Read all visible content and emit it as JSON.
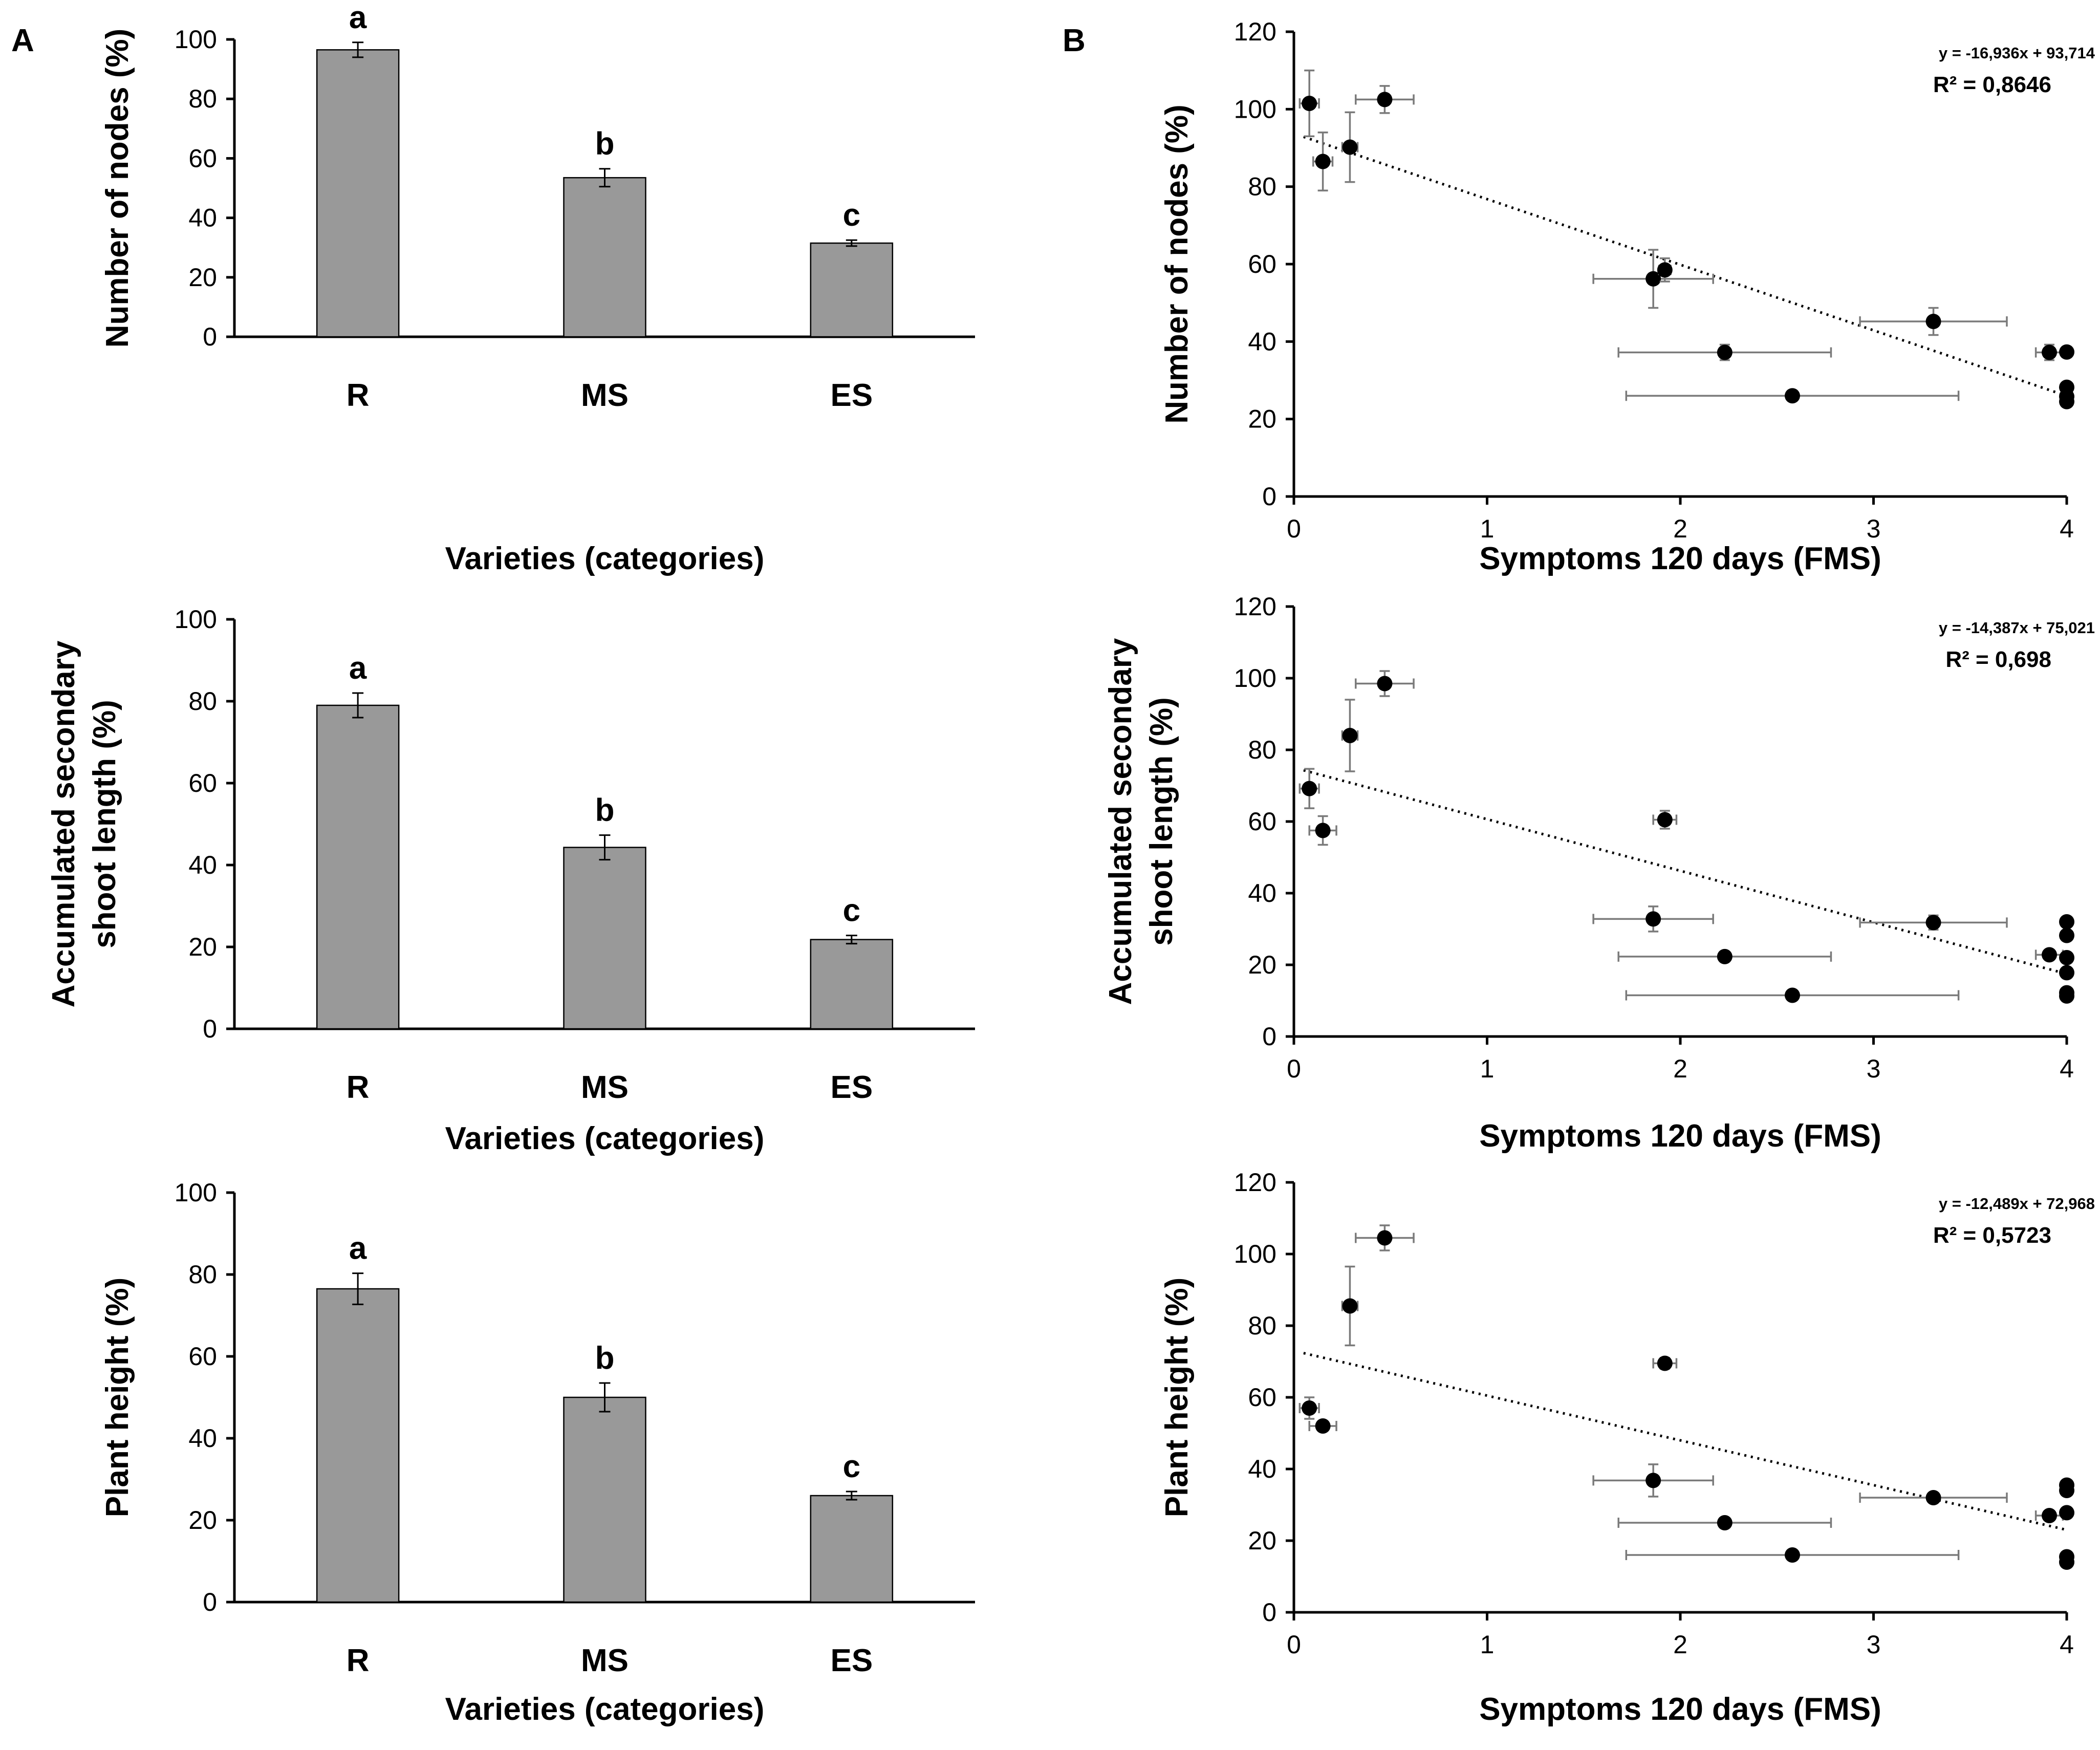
{
  "panels": {
    "A": "A",
    "B": "B"
  },
  "chart_data": [
    {
      "id": "bar-nodes",
      "type": "bar",
      "title": "",
      "categories": [
        "R",
        "MS",
        "ES"
      ],
      "values": [
        96.5,
        53.5,
        31.5
      ],
      "errors": [
        2.5,
        3,
        1
      ],
      "letters": [
        "a",
        "b",
        "c"
      ],
      "xlabel": "Varieties (categories)",
      "ylabel": [
        "Number of nodes (%)"
      ],
      "ylim": [
        0,
        100
      ],
      "yticks": [
        0,
        20,
        40,
        60,
        80,
        100
      ]
    },
    {
      "id": "bar-shoot",
      "type": "bar",
      "title": "",
      "categories": [
        "R",
        "MS",
        "ES"
      ],
      "values": [
        79,
        44.3,
        21.8
      ],
      "errors": [
        3,
        3,
        1
      ],
      "letters": [
        "a",
        "b",
        "c"
      ],
      "xlabel": "Varieties (categories)",
      "ylabel": [
        "Accumulated secondary",
        "shoot length (%)"
      ],
      "ylim": [
        0,
        100
      ],
      "yticks": [
        0,
        20,
        40,
        60,
        80,
        100
      ]
    },
    {
      "id": "bar-height",
      "type": "bar",
      "title": "",
      "categories": [
        "R",
        "MS",
        "ES"
      ],
      "values": [
        76.5,
        50,
        26
      ],
      "errors": [
        3.8,
        3.5,
        1
      ],
      "letters": [
        "a",
        "b",
        "c"
      ],
      "xlabel": "Varieties (categories)",
      "ylabel": [
        "Plant height (%)"
      ],
      "ylim": [
        0,
        100
      ],
      "yticks": [
        0,
        20,
        40,
        60,
        80,
        100
      ]
    },
    {
      "id": "scatter-nodes",
      "type": "scatter",
      "xlabel": "Symptoms 120 days (FMS)",
      "ylabel": [
        "Number of nodes (%)"
      ],
      "xlim": [
        0,
        4
      ],
      "ylim": [
        0,
        120
      ],
      "xticks": [
        0,
        1,
        2,
        3,
        4
      ],
      "yticks": [
        0,
        20,
        40,
        60,
        80,
        100,
        120
      ],
      "equation": "y = -16,936x + 93,714",
      "r2": "R² = 0,8646",
      "trend": {
        "slope": -16.936,
        "intercept": 93.714,
        "x_from": 0.05,
        "x_to": 4
      },
      "points": [
        {
          "x": 0.08,
          "y": 101.5,
          "xerr": 0.05,
          "yerr": 8.5
        },
        {
          "x": 0.47,
          "y": 102.5,
          "xerr": 0.15,
          "yerr": 3.5
        },
        {
          "x": 0.15,
          "y": 86.5,
          "xerr": 0.05,
          "yerr": 7.5
        },
        {
          "x": 0.29,
          "y": 90.2,
          "xerr": 0.04,
          "yerr": 9
        },
        {
          "x": 1.86,
          "y": 56.2,
          "xerr": 0.31,
          "yerr": 7.5
        },
        {
          "x": 1.92,
          "y": 58.5,
          "xerr": 0.03,
          "yerr": 3
        },
        {
          "x": 2.23,
          "y": 37.2,
          "xerr": 0.55,
          "yerr": 2
        },
        {
          "x": 3.31,
          "y": 45.2,
          "xerr": 0.38,
          "yerr": 3.5
        },
        {
          "x": 2.58,
          "y": 26,
          "xerr": 0.86,
          "yerr": 0
        },
        {
          "x": 3.91,
          "y": 37.2,
          "xerr": 0.07,
          "yerr": 2
        },
        {
          "x": 4.0,
          "y": 37.3,
          "xerr": 0,
          "yerr": 0
        },
        {
          "x": 4.0,
          "y": 28.2,
          "xerr": 0,
          "yerr": 0
        },
        {
          "x": 4.0,
          "y": 25.8,
          "xerr": 0,
          "yerr": 0
        },
        {
          "x": 4.0,
          "y": 24.5,
          "xerr": 0,
          "yerr": 0
        }
      ]
    },
    {
      "id": "scatter-shoot",
      "type": "scatter",
      "xlabel": "Symptoms 120 days (FMS)",
      "ylabel": [
        "Accumulated secondary",
        "shoot length (%)"
      ],
      "xlim": [
        0,
        4
      ],
      "ylim": [
        0,
        120
      ],
      "xticks": [
        0,
        1,
        2,
        3,
        4
      ],
      "yticks": [
        0,
        20,
        40,
        60,
        80,
        100,
        120
      ],
      "equation": "y = -14,387x + 75,021",
      "r2": "R² = 0,698",
      "trend": {
        "slope": -14.387,
        "intercept": 75.021,
        "x_from": 0.05,
        "x_to": 4
      },
      "points": [
        {
          "x": 0.47,
          "y": 98.5,
          "xerr": 0.15,
          "yerr": 3.5
        },
        {
          "x": 0.29,
          "y": 84,
          "xerr": 0.04,
          "yerr": 10
        },
        {
          "x": 0.08,
          "y": 69.2,
          "xerr": 0.05,
          "yerr": 5.5
        },
        {
          "x": 0.15,
          "y": 57.5,
          "xerr": 0.07,
          "yerr": 4
        },
        {
          "x": 1.92,
          "y": 60.5,
          "xerr": 0.06,
          "yerr": 2.5
        },
        {
          "x": 1.86,
          "y": 32.8,
          "xerr": 0.31,
          "yerr": 3.5
        },
        {
          "x": 3.31,
          "y": 31.8,
          "xerr": 0.38,
          "yerr": 2
        },
        {
          "x": 2.23,
          "y": 22.3,
          "xerr": 0.55,
          "yerr": 0
        },
        {
          "x": 2.58,
          "y": 11.5,
          "xerr": 0.86,
          "yerr": 0
        },
        {
          "x": 3.91,
          "y": 22.8,
          "xerr": 0.07,
          "yerr": 0
        },
        {
          "x": 4.0,
          "y": 32,
          "xerr": 0,
          "yerr": 0
        },
        {
          "x": 4.0,
          "y": 28.2,
          "xerr": 0,
          "yerr": 0
        },
        {
          "x": 4.0,
          "y": 22,
          "xerr": 0,
          "yerr": 0
        },
        {
          "x": 4.0,
          "y": 17.8,
          "xerr": 0,
          "yerr": 0
        },
        {
          "x": 4.0,
          "y": 12.2,
          "xerr": 0,
          "yerr": 0
        },
        {
          "x": 4.0,
          "y": 11.3,
          "xerr": 0,
          "yerr": 0
        }
      ]
    },
    {
      "id": "scatter-height",
      "type": "scatter",
      "xlabel": "Symptoms 120 days (FMS)",
      "ylabel": [
        "Plant height (%)"
      ],
      "xlim": [
        0,
        4
      ],
      "ylim": [
        0,
        120
      ],
      "xticks": [
        0,
        1,
        2,
        3,
        4
      ],
      "yticks": [
        0,
        20,
        40,
        60,
        80,
        100,
        120
      ],
      "equation": "y = -12,489x + 72,968",
      "r2": "R² = 0,5723",
      "trend": {
        "slope": -12.489,
        "intercept": 72.968,
        "x_from": 0.05,
        "x_to": 4
      },
      "points": [
        {
          "x": 0.47,
          "y": 104.5,
          "xerr": 0.15,
          "yerr": 3.5
        },
        {
          "x": 0.29,
          "y": 85.5,
          "xerr": 0.04,
          "yerr": 11
        },
        {
          "x": 0.08,
          "y": 57,
          "xerr": 0.05,
          "yerr": 3
        },
        {
          "x": 0.15,
          "y": 52,
          "xerr": 0.07,
          "yerr": 0
        },
        {
          "x": 1.92,
          "y": 69.5,
          "xerr": 0.06,
          "yerr": 1.5
        },
        {
          "x": 1.86,
          "y": 36.8,
          "xerr": 0.31,
          "yerr": 4.5
        },
        {
          "x": 3.31,
          "y": 32,
          "xerr": 0.38,
          "yerr": 0
        },
        {
          "x": 2.23,
          "y": 25,
          "xerr": 0.55,
          "yerr": 0
        },
        {
          "x": 2.58,
          "y": 16,
          "xerr": 0.86,
          "yerr": 0
        },
        {
          "x": 3.91,
          "y": 27,
          "xerr": 0.07,
          "yerr": 0
        },
        {
          "x": 4.0,
          "y": 35.5,
          "xerr": 0,
          "yerr": 0
        },
        {
          "x": 4.0,
          "y": 34,
          "xerr": 0,
          "yerr": 0
        },
        {
          "x": 4.0,
          "y": 27.8,
          "xerr": 0,
          "yerr": 0
        },
        {
          "x": 4.0,
          "y": 15.5,
          "xerr": 0,
          "yerr": 0
        },
        {
          "x": 4.0,
          "y": 14,
          "xerr": 0,
          "yerr": 0
        }
      ]
    }
  ]
}
